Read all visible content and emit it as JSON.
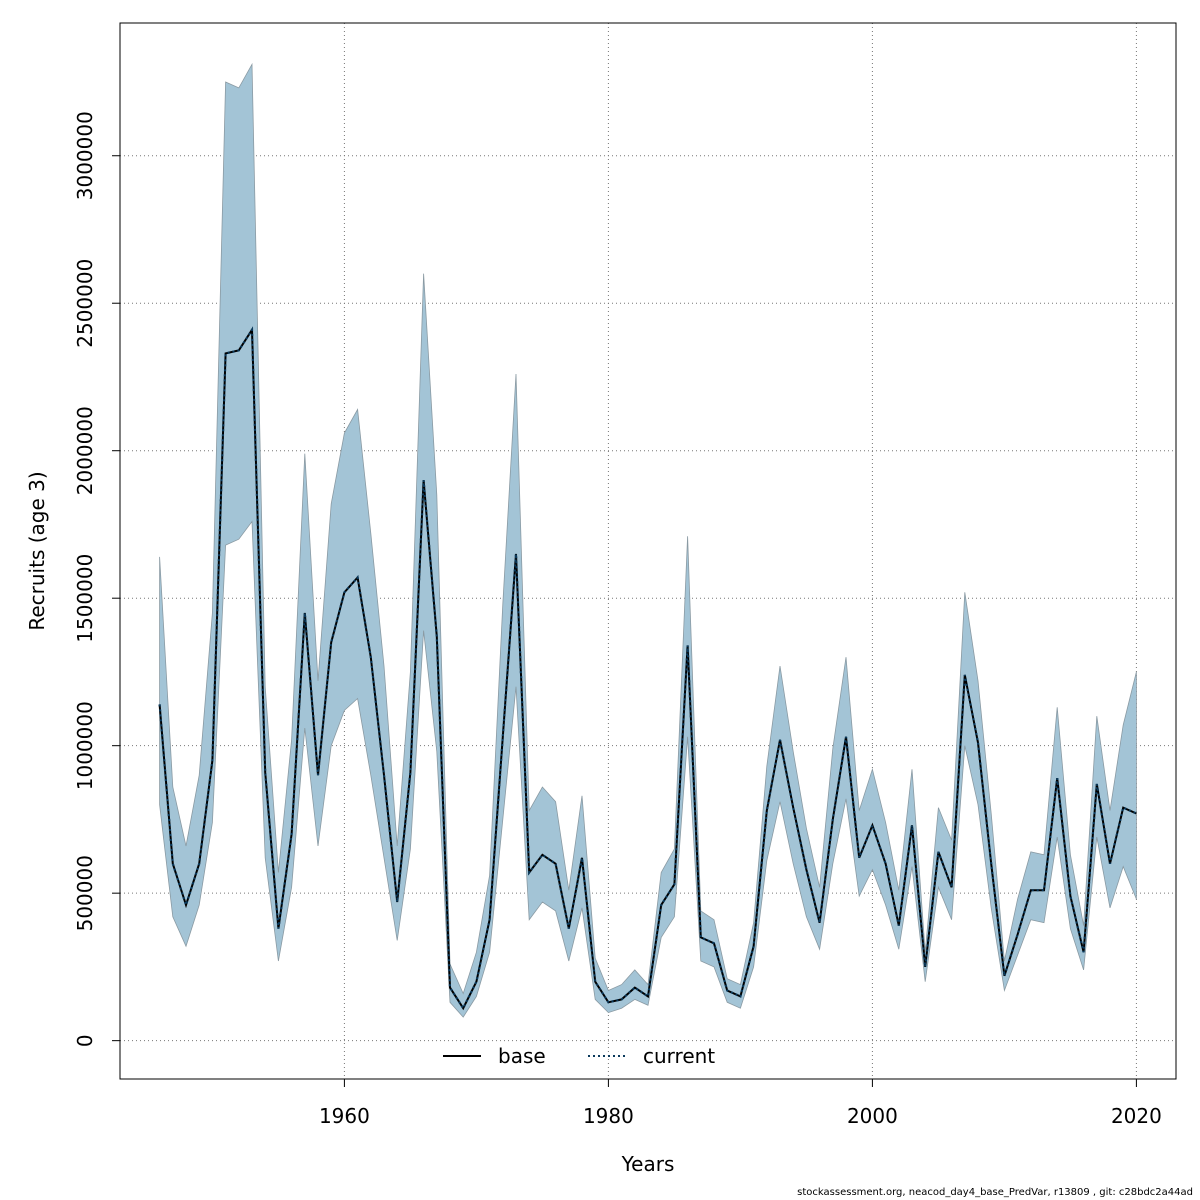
{
  "chart_data": {
    "type": "area",
    "xlabel": "Years",
    "ylabel": "Recruits (age 3)",
    "xlim": [
      1943,
      2023
    ],
    "ylim": [
      -130000,
      3450000
    ],
    "x_ticks": [
      1960,
      1980,
      2000,
      2020
    ],
    "y_ticks": [
      0,
      500000,
      1000000,
      1500000,
      2000000,
      2500000,
      3000000
    ],
    "grid": true,
    "legend_position": "bottom-center",
    "colors": {
      "band": "#a3c4d6",
      "band_edge": "#8a9aa3",
      "current": "#0b3a5c",
      "base": "#000000"
    },
    "x": [
      1946,
      1947,
      1948,
      1949,
      1950,
      1951,
      1952,
      1953,
      1954,
      1955,
      1956,
      1957,
      1958,
      1959,
      1960,
      1961,
      1962,
      1963,
      1964,
      1965,
      1966,
      1967,
      1968,
      1969,
      1970,
      1971,
      1972,
      1973,
      1974,
      1975,
      1976,
      1977,
      1978,
      1979,
      1980,
      1981,
      1982,
      1983,
      1984,
      1985,
      1986,
      1987,
      1988,
      1989,
      1990,
      1991,
      1992,
      1993,
      1994,
      1995,
      1996,
      1997,
      1998,
      1999,
      2000,
      2001,
      2002,
      2003,
      2004,
      2005,
      2006,
      2007,
      2008,
      2009,
      2010,
      2011,
      2012,
      2013,
      2014,
      2015,
      2016,
      2017,
      2018,
      2019,
      2020
    ],
    "series": [
      {
        "name": "base",
        "style": "solid",
        "values": [
          1140000,
          600000,
          460000,
          600000,
          950000,
          2330000,
          2340000,
          2410000,
          910000,
          380000,
          700000,
          1450000,
          900000,
          1350000,
          1520000,
          1570000,
          1300000,
          900000,
          470000,
          910000,
          1900000,
          1370000,
          180000,
          110000,
          200000,
          410000,
          1030000,
          1650000,
          570000,
          630000,
          600000,
          380000,
          620000,
          200000,
          130000,
          140000,
          180000,
          150000,
          460000,
          530000,
          1340000,
          350000,
          330000,
          170000,
          150000,
          320000,
          780000,
          1020000,
          790000,
          580000,
          400000,
          750000,
          1030000,
          620000,
          730000,
          600000,
          390000,
          730000,
          250000,
          640000,
          520000,
          1240000,
          1010000,
          600000,
          220000,
          360000,
          510000,
          510000,
          890000,
          490000,
          300000,
          870000,
          600000,
          790000,
          770000
        ]
      },
      {
        "name": "current",
        "style": "dotted",
        "values": [
          1140000,
          600000,
          460000,
          600000,
          950000,
          2330000,
          2340000,
          2410000,
          910000,
          380000,
          700000,
          1450000,
          900000,
          1350000,
          1520000,
          1570000,
          1300000,
          900000,
          470000,
          910000,
          1900000,
          1370000,
          180000,
          110000,
          200000,
          410000,
          1030000,
          1650000,
          570000,
          630000,
          600000,
          380000,
          620000,
          200000,
          130000,
          140000,
          180000,
          150000,
          460000,
          530000,
          1340000,
          350000,
          330000,
          170000,
          150000,
          320000,
          780000,
          1020000,
          790000,
          580000,
          400000,
          750000,
          1030000,
          620000,
          730000,
          600000,
          390000,
          730000,
          250000,
          640000,
          520000,
          1240000,
          1010000,
          600000,
          220000,
          360000,
          510000,
          510000,
          890000,
          490000,
          300000,
          870000,
          600000,
          790000,
          770000
        ]
      }
    ],
    "upper": [
      1640000,
      860000,
      660000,
      900000,
      1450000,
      3250000,
      3230000,
      3310000,
      1200000,
      570000,
      1020000,
      1990000,
      1220000,
      1820000,
      2060000,
      2140000,
      1720000,
      1270000,
      660000,
      1250000,
      2600000,
      1850000,
      260000,
      160000,
      300000,
      560000,
      1480000,
      2260000,
      780000,
      860000,
      810000,
      510000,
      830000,
      280000,
      170000,
      190000,
      240000,
      190000,
      570000,
      650000,
      1710000,
      440000,
      410000,
      210000,
      190000,
      400000,
      930000,
      1270000,
      980000,
      720000,
      520000,
      990000,
      1300000,
      780000,
      920000,
      740000,
      510000,
      920000,
      300000,
      790000,
      680000,
      1520000,
      1220000,
      770000,
      270000,
      480000,
      640000,
      630000,
      1130000,
      630000,
      390000,
      1100000,
      780000,
      1070000,
      1250000
    ],
    "lower": [
      800000,
      420000,
      320000,
      460000,
      740000,
      1680000,
      1700000,
      1760000,
      620000,
      270000,
      520000,
      1060000,
      660000,
      1000000,
      1120000,
      1160000,
      900000,
      620000,
      340000,
      650000,
      1390000,
      980000,
      130000,
      80000,
      150000,
      300000,
      750000,
      1200000,
      410000,
      470000,
      440000,
      270000,
      450000,
      140000,
      95000,
      110000,
      140000,
      120000,
      350000,
      420000,
      1030000,
      270000,
      250000,
      130000,
      110000,
      250000,
      610000,
      810000,
      600000,
      420000,
      310000,
      600000,
      820000,
      490000,
      580000,
      460000,
      310000,
      590000,
      200000,
      520000,
      410000,
      1000000,
      800000,
      450000,
      170000,
      290000,
      410000,
      400000,
      690000,
      380000,
      240000,
      690000,
      450000,
      590000,
      480000
    ],
    "legend": [
      {
        "label": "base",
        "style": "solid"
      },
      {
        "label": "current",
        "style": "dotted"
      }
    ]
  },
  "footer": "stockassessment.org, neacod_day4_base_PredVar, r13809 , git: c28bdc2a44ad"
}
